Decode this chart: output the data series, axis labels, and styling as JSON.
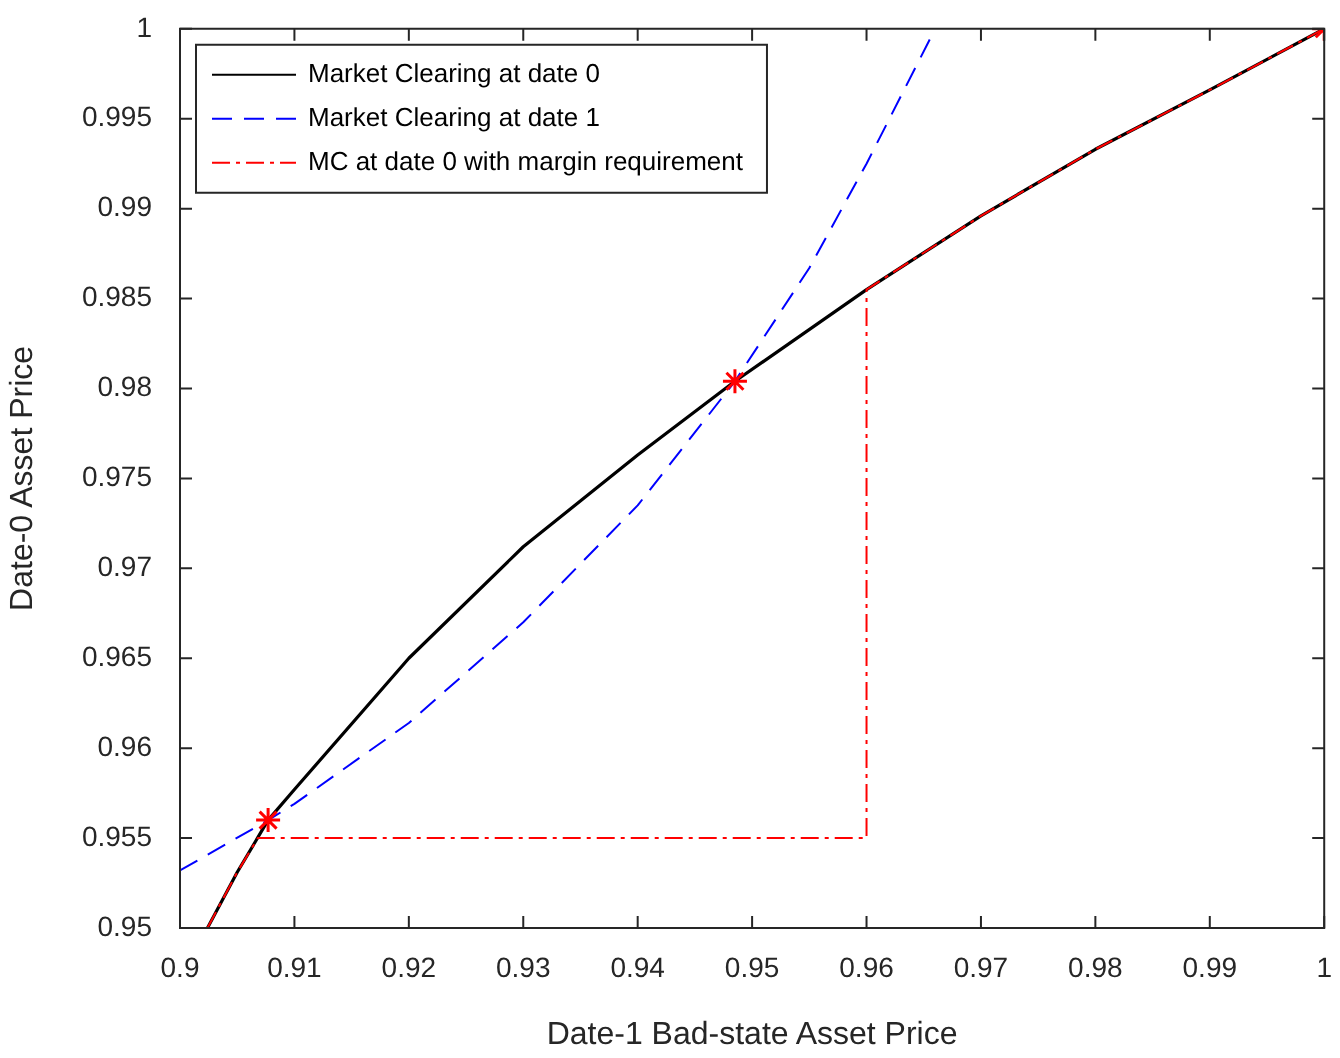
{
  "chart_data": {
    "type": "line",
    "xlabel": "Date-1 Bad-state Asset Price",
    "ylabel": "Date-0 Asset Price",
    "xlim": [
      0.9,
      1
    ],
    "xticks": [
      0.9,
      0.91,
      0.92,
      0.93,
      0.94,
      0.95,
      0.96,
      0.97,
      0.98,
      0.99,
      1
    ],
    "ylim": [
      0.95,
      1
    ],
    "yticks": [
      0.95,
      0.955,
      0.96,
      0.965,
      0.97,
      0.975,
      0.98,
      0.985,
      0.99,
      0.995,
      1
    ],
    "legend": "top left",
    "grid": false,
    "series": [
      {
        "name": "Market Clearing at date 0",
        "color": "#000000",
        "line_style": "solid",
        "x": [
          0.9024,
          0.905,
          0.9077,
          0.91,
          0.92,
          0.93,
          0.94,
          0.9485,
          0.96,
          0.97,
          0.98,
          0.99,
          1
        ],
        "values": [
          0.95,
          0.9531,
          0.956,
          0.9577,
          0.965,
          0.9712,
          0.9763,
          0.9804,
          0.9855,
          0.9896,
          0.9933,
          0.9966,
          1
        ]
      },
      {
        "name": "Market Clearing at date 1",
        "color": "#0000ff",
        "line_style": "dashed",
        "x": [
          0.9,
          0.9077,
          0.91,
          0.92,
          0.93,
          0.94,
          0.9485,
          0.955,
          0.96,
          0.966
        ],
        "values": [
          0.9532,
          0.956,
          0.9569,
          0.9614,
          0.967,
          0.9735,
          0.9804,
          0.9867,
          0.9925,
          1
        ]
      },
      {
        "name": "MC at date 0 with margin requirement",
        "color": "#ff0000",
        "line_style": "dashdot",
        "x": [
          0.9024,
          0.905,
          0.9068,
          0.96,
          0.96,
          0.97,
          0.98,
          0.99,
          1
        ],
        "values": [
          0.95,
          0.9531,
          0.955,
          0.955,
          0.9855,
          0.9896,
          0.9933,
          0.9966,
          1
        ]
      },
      {
        "type": "scatter",
        "marker": "cross",
        "color": "#ff0000",
        "x": [
          0.9077,
          0.9485,
          1
        ],
        "values": [
          0.956,
          0.9804,
          1
        ]
      }
    ]
  }
}
